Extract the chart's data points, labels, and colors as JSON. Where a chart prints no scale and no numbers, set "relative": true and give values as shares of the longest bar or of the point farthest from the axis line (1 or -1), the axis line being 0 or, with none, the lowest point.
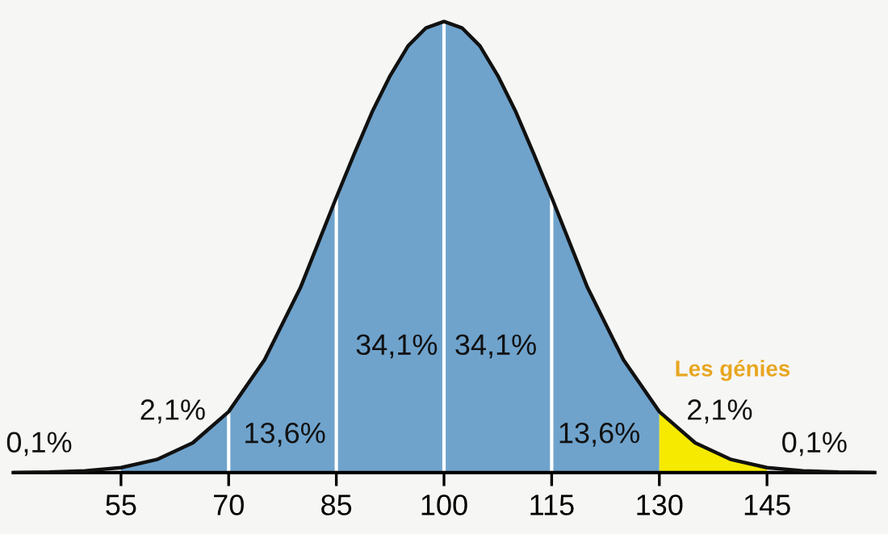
{
  "chart_data": {
    "type": "area",
    "relative": true,
    "tick_labels": "x",
    "grid": false,
    "legend": false,
    "marker": "none",
    "xlim": [
      40,
      160
    ],
    "xticks": [
      55,
      70,
      85,
      100,
      115,
      130,
      145
    ],
    "series": [
      {
        "color": "#6fa3cc",
        "x": [
          55,
          60,
          65,
          70,
          75,
          80,
          85,
          87.5,
          90,
          92.5,
          95,
          97.5,
          100,
          102.5,
          105,
          107.5,
          110,
          112.5,
          115,
          120,
          125,
          130
        ],
        "values": [
          0.011,
          0.029,
          0.066,
          0.135,
          0.25,
          0.41,
          0.61,
          0.707,
          0.8,
          0.88,
          0.946,
          0.986,
          1,
          0.986,
          0.946,
          0.88,
          0.8,
          0.707,
          0.61,
          0.41,
          0.25,
          0.135
        ]
      },
      {
        "color": "#f5ea00",
        "x": [
          130,
          132.5,
          135,
          140,
          145
        ],
        "values": [
          0.135,
          0.096,
          0.066,
          0.029,
          0.011
        ]
      },
      {
        "type": "line",
        "color": "#111111",
        "line_style": "solid",
        "x": [
          40,
          45,
          50,
          55,
          60,
          65,
          70,
          75,
          80,
          85,
          87.5,
          90,
          92.5,
          95,
          97.5,
          100,
          102.5,
          105,
          107.5,
          110,
          112.5,
          115,
          120,
          125,
          130,
          135,
          140,
          145,
          150,
          155,
          160
        ],
        "values": [
          0,
          0.001,
          0.004,
          0.011,
          0.029,
          0.066,
          0.135,
          0.25,
          0.41,
          0.61,
          0.707,
          0.8,
          0.88,
          0.946,
          0.986,
          1,
          0.986,
          0.946,
          0.88,
          0.8,
          0.707,
          0.61,
          0.41,
          0.25,
          0.135,
          0.066,
          0.029,
          0.011,
          0.004,
          0.001,
          0
        ]
      }
    ],
    "ref_lines": [
      {
        "axis": "x",
        "value": 70,
        "color": "#ffffff"
      },
      {
        "axis": "x",
        "value": 85,
        "color": "#ffffff"
      },
      {
        "axis": "x",
        "value": 100,
        "color": "#ffffff"
      },
      {
        "axis": "x",
        "value": 115,
        "color": "#ffffff"
      }
    ],
    "annotations": [
      "0,1%",
      "2,1%",
      "13,6%",
      "34,1%",
      "34,1%",
      "13,6%",
      "2,1%",
      "0,1%",
      "Les génies"
    ]
  }
}
